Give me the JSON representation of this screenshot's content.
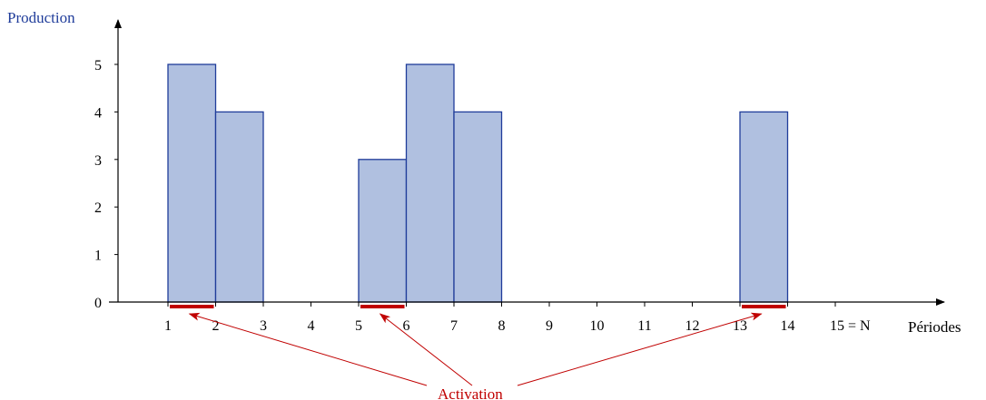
{
  "chart_data": {
    "type": "bar",
    "ylabel": "Production",
    "xlabel": "Périodes",
    "ylim": [
      0,
      5
    ],
    "yticks": [
      "0",
      "1",
      "2",
      "3",
      "4",
      "5"
    ],
    "xticks": [
      "1",
      "2",
      "3",
      "4",
      "5",
      "6",
      "7",
      "8",
      "9",
      "10",
      "11",
      "12",
      "13",
      "14",
      "15 = N"
    ],
    "bars": [
      {
        "start": 1,
        "end": 2,
        "value": 5
      },
      {
        "start": 2,
        "end": 3,
        "value": 4
      },
      {
        "start": 5,
        "end": 6,
        "value": 3
      },
      {
        "start": 6,
        "end": 7,
        "value": 5
      },
      {
        "start": 7,
        "end": 8,
        "value": 4
      },
      {
        "start": 13,
        "end": 14,
        "value": 4
      }
    ],
    "activations": [
      1,
      5,
      13
    ],
    "annotation": "Activation"
  },
  "colors": {
    "bar_fill": "#b0c0e0",
    "bar_stroke": "#1f3c9a",
    "axis": "#000000",
    "label_blue": "#1f3c9a",
    "activation": "#c00000"
  }
}
